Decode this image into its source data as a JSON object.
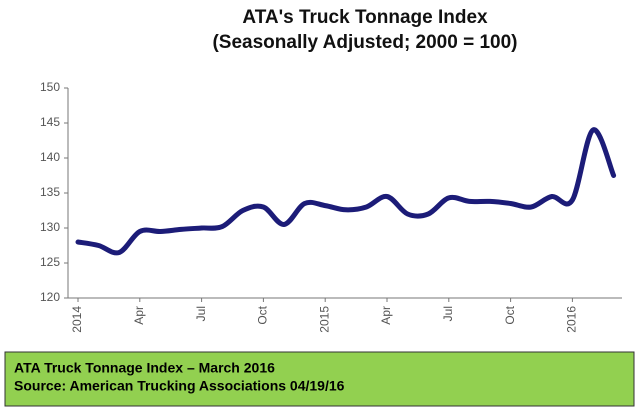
{
  "chart_data": {
    "type": "line",
    "title": "ATA's Truck Tonnage Index",
    "subtitle": "(Seasonally Adjusted; 2000 = 100)",
    "categories": [
      "2014",
      null,
      null,
      "Apr",
      null,
      null,
      "Jul",
      null,
      null,
      "Oct",
      null,
      null,
      "2015",
      null,
      null,
      "Apr",
      null,
      null,
      "Jul",
      null,
      null,
      "Oct",
      null,
      null,
      "2016",
      null,
      null
    ],
    "series": [
      {
        "color": "#1c1c78",
        "values": [
          128.0,
          127.5,
          126.5,
          129.5,
          129.5,
          129.8,
          130.0,
          130.2,
          132.5,
          133.0,
          130.5,
          133.5,
          133.2,
          132.6,
          133.0,
          134.5,
          132.0,
          132.0,
          134.3,
          133.8,
          133.8,
          133.5,
          133.0,
          134.5,
          134.0,
          144.0,
          137.5
        ]
      }
    ],
    "ylim": [
      120,
      150
    ],
    "yticks": [
      120,
      125,
      130,
      135,
      140,
      145,
      150
    ],
    "grid": false
  },
  "source_box": {
    "lines": [
      "ATA Truck Tonnage Index – March 2016",
      "Source: American Trucking Associations 04/19/16"
    ],
    "color": "#92d050"
  }
}
